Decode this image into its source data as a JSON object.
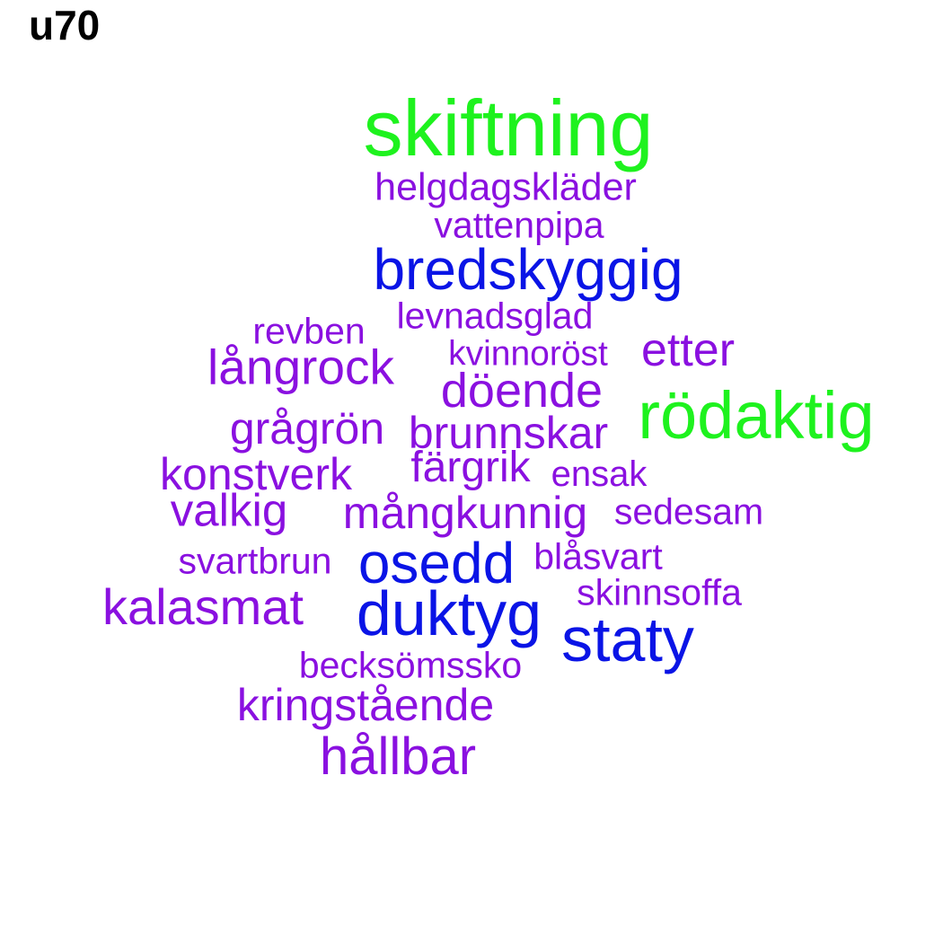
{
  "title": "u70",
  "colors": {
    "green": "#1ef21e",
    "blue": "#0a14e6",
    "purple": "#8a10e0"
  },
  "words": [
    {
      "text": "skiftning",
      "color": "green"
    },
    {
      "text": "helgdagskläder",
      "color": "purple"
    },
    {
      "text": "vattenpipa",
      "color": "purple"
    },
    {
      "text": "bredskyggig",
      "color": "blue"
    },
    {
      "text": "levnadsglad",
      "color": "purple"
    },
    {
      "text": "revben",
      "color": "purple"
    },
    {
      "text": "kvinnoröst",
      "color": "purple"
    },
    {
      "text": "etter",
      "color": "purple"
    },
    {
      "text": "långrock",
      "color": "purple"
    },
    {
      "text": "döende",
      "color": "purple"
    },
    {
      "text": "rödaktig",
      "color": "green"
    },
    {
      "text": "grågrön",
      "color": "purple"
    },
    {
      "text": "brunnskar",
      "color": "purple"
    },
    {
      "text": "färgrik",
      "color": "purple"
    },
    {
      "text": "ensak",
      "color": "purple"
    },
    {
      "text": "konstverk",
      "color": "purple"
    },
    {
      "text": "valkig",
      "color": "purple"
    },
    {
      "text": "mångkunnig",
      "color": "purple"
    },
    {
      "text": "sedesam",
      "color": "purple"
    },
    {
      "text": "svartbrun",
      "color": "purple"
    },
    {
      "text": "osedd",
      "color": "blue"
    },
    {
      "text": "blåsvart",
      "color": "purple"
    },
    {
      "text": "skinnsoffa",
      "color": "purple"
    },
    {
      "text": "kalasmat",
      "color": "purple"
    },
    {
      "text": "duktyg",
      "color": "blue"
    },
    {
      "text": "staty",
      "color": "blue"
    },
    {
      "text": "becksömssko",
      "color": "purple"
    },
    {
      "text": "kringstående",
      "color": "purple"
    },
    {
      "text": "hållbar",
      "color": "purple"
    }
  ]
}
